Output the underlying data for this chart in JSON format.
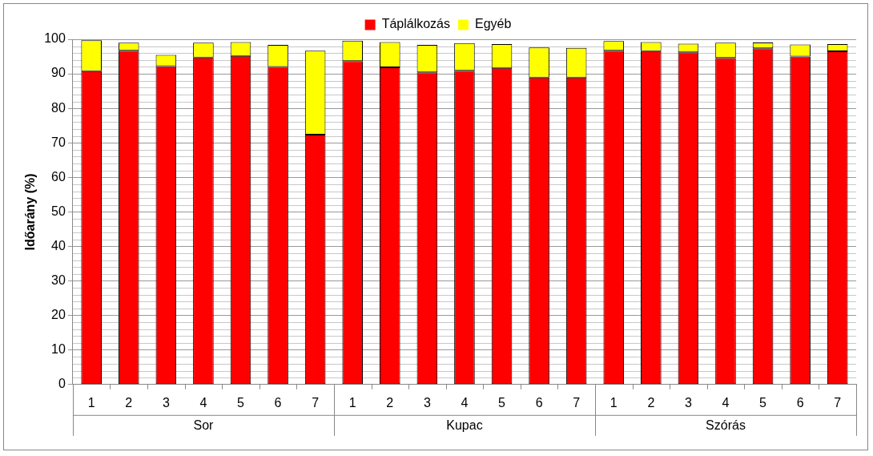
{
  "chart_data": {
    "type": "bar",
    "stacked": true,
    "ylabel": "Időarány (%)",
    "categories": [
      "1",
      "2",
      "3",
      "4",
      "5",
      "6",
      "7",
      "1",
      "2",
      "3",
      "4",
      "5",
      "6",
      "7",
      "1",
      "2",
      "3",
      "4",
      "5",
      "6",
      "7"
    ],
    "annotations": [
      "Sor",
      "Kupac",
      "Szórás"
    ],
    "series": [
      {
        "name": "Táplálkozás",
        "color": "#ff0000",
        "values": [
          90.8,
          96.7,
          92.2,
          94.7,
          95.2,
          92.0,
          72.4,
          93.7,
          91.9,
          90.4,
          90.9,
          91.7,
          88.9,
          88.9,
          96.7,
          96.6,
          96.2,
          94.6,
          97.4,
          95.0,
          96.5
        ]
      },
      {
        "name": "Egyéb",
        "color": "#ffff00",
        "values": [
          8.9,
          2.3,
          3.3,
          4.3,
          4.0,
          6.4,
          24.3,
          5.9,
          7.3,
          8.0,
          8.0,
          6.9,
          8.7,
          8.6,
          2.8,
          2.6,
          2.5,
          4.4,
          1.7,
          3.5,
          2.1
        ]
      }
    ],
    "ylim": [
      0,
      100
    ],
    "yticks": [
      0,
      10,
      20,
      30,
      40,
      50,
      60,
      70,
      80,
      90,
      100
    ],
    "grid": "y",
    "legend": "top"
  }
}
